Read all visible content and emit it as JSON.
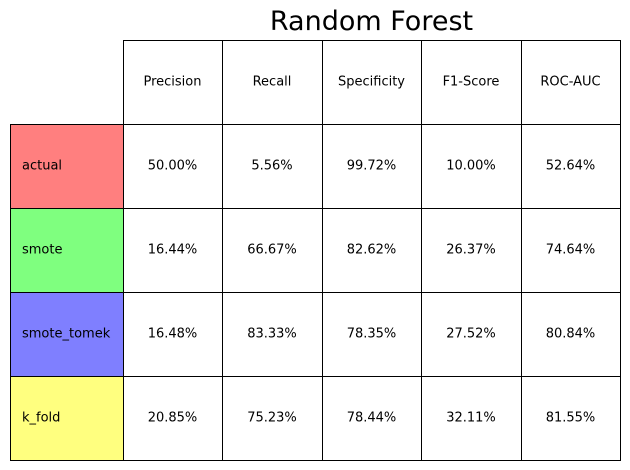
{
  "chart_data": {
    "type": "table",
    "title": "Random Forest",
    "columns": [
      "Precision",
      "Recall",
      "Specificity",
      "F1-Score",
      "ROC-AUC"
    ],
    "rows": [
      {
        "label": "actual",
        "color": "#ff7f7f",
        "values": [
          "50.00%",
          "5.56%",
          "99.72%",
          "10.00%",
          "52.64%"
        ]
      },
      {
        "label": "smote",
        "color": "#7fff7f",
        "values": [
          "16.44%",
          "66.67%",
          "82.62%",
          "26.37%",
          "74.64%"
        ]
      },
      {
        "label": "smote_tomek",
        "color": "#7f7fff",
        "values": [
          "16.48%",
          "83.33%",
          "78.35%",
          "27.52%",
          "80.84%"
        ]
      },
      {
        "label": "k_fold",
        "color": "#ffff7f",
        "values": [
          "20.85%",
          "75.23%",
          "78.44%",
          "32.11%",
          "81.55%"
        ]
      }
    ]
  }
}
